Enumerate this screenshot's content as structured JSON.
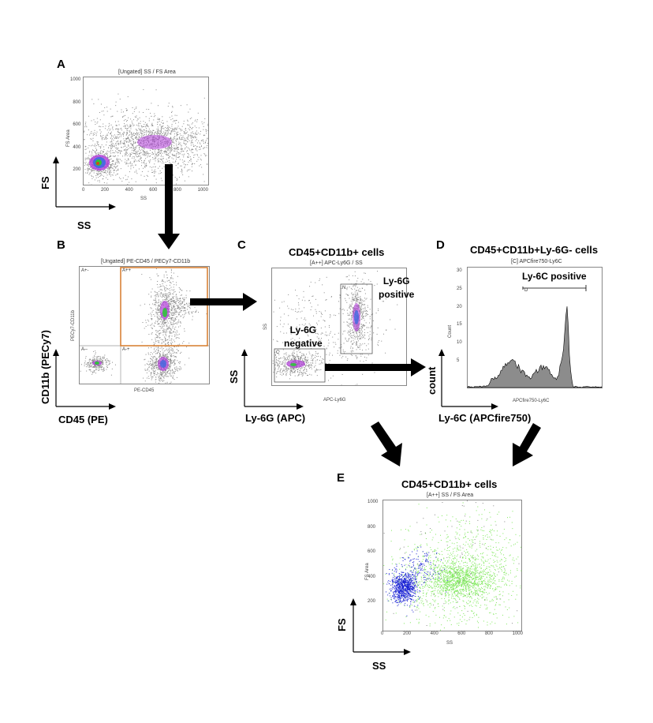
{
  "panels": {
    "A": {
      "letter": "A",
      "plot_title": "[Ungated] SS / FS Area",
      "xaxis": "SS",
      "yaxis": "FS Area",
      "xticks": [
        "0",
        "200",
        "400",
        "600",
        "800",
        "1000"
      ],
      "yticks": [
        "1000",
        "800",
        "600",
        "400",
        "200"
      ],
      "big_x": "SS",
      "big_y": "FS"
    },
    "B": {
      "letter": "B",
      "plot_title": "[Ungated] PE-CD45 / PECy7-CD11b",
      "xaxis": "PE-CD45",
      "yaxis": "PECy7-CD11b",
      "gates": [
        "A+-",
        "A++",
        "A--",
        "A-+"
      ],
      "big_x": "CD45 (PE)",
      "big_y": "CD11b (PECy7)"
    },
    "C": {
      "letter": "C",
      "title": "CD45+CD11b+ cells",
      "plot_title": "[A++] APC-Ly6G / SS",
      "xaxis": "APC-Ly6G",
      "yaxis": "SS",
      "gate_c": "C",
      "gate_n": "N",
      "label_pos_1": "Ly-6G",
      "label_pos_2": "positive",
      "label_neg_1": "Ly-6G",
      "label_neg_2": "negative",
      "big_x": "Ly-6G (APC)",
      "big_y": "SS"
    },
    "D": {
      "letter": "D",
      "title": "CD45+CD11b+Ly-6G- cells",
      "plot_title": "[C] APCfire750-Ly6C",
      "xaxis": "APCfire750-Ly6C",
      "yaxis": "Count",
      "gate": "D",
      "label": "Ly-6C positive",
      "yticks": [
        "30",
        "25",
        "20",
        "15",
        "10",
        "5"
      ],
      "big_x": "Ly-6C (APCfire750)",
      "big_y": "count"
    },
    "E": {
      "letter": "E",
      "title": "CD45+CD11b+ cells",
      "plot_title": "[A++] SS / FS Area",
      "xaxis": "SS",
      "yaxis": "FS Area",
      "xticks": [
        "0",
        "200",
        "400",
        "600",
        "800",
        "1000"
      ],
      "yticks": [
        "1000",
        "800",
        "600",
        "400",
        "200"
      ],
      "big_x": "SS",
      "big_y": "FS"
    }
  },
  "colors": {
    "scatter_gray": "#8a8a8a",
    "density_purple": "#b13cd9",
    "density_blue": "#3f6be0",
    "density_green": "#2fc43a",
    "gate_orange": "#d67a2a",
    "hist_gray": "#8c8c8c",
    "e_blue": "#1a22d4",
    "e_green": "#7ee85a"
  }
}
